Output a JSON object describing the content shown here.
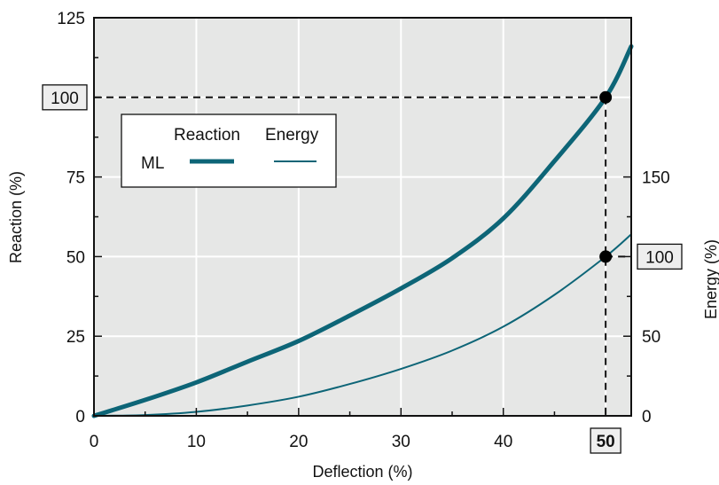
{
  "chart_data": {
    "type": "line",
    "xlabel": "Deflection (%)",
    "ylabel": "Reaction (%)",
    "y2label": "Energy (%)",
    "xlim": [
      0,
      52.5
    ],
    "ylim": [
      0,
      125
    ],
    "y2lim": [
      0,
      250
    ],
    "x_ticks": [
      0,
      10,
      20,
      30,
      40,
      50
    ],
    "y_ticks": [
      0,
      25,
      50,
      75,
      100,
      125
    ],
    "y2_ticks": [
      0,
      50,
      100,
      150
    ],
    "grid": true,
    "legend": {
      "placement": "upper-left",
      "row_label": "ML",
      "column_labels": [
        "Reaction",
        "Energy"
      ]
    },
    "series": [
      {
        "name": "Reaction",
        "axis": "left",
        "x": [
          0,
          5,
          10,
          15,
          20,
          25,
          30,
          35,
          40,
          45,
          50,
          52.5
        ],
        "y": [
          0,
          5,
          10.5,
          17,
          23.5,
          31.5,
          40,
          49.5,
          62,
          80,
          100,
          116
        ]
      },
      {
        "name": "Energy",
        "axis": "right",
        "x": [
          0,
          5,
          10,
          15,
          20,
          25,
          30,
          35,
          40,
          45,
          50,
          52.5
        ],
        "y": [
          0,
          0.5,
          2.5,
          6.5,
          12,
          20,
          29.5,
          41,
          56,
          76,
          100,
          114
        ]
      }
    ],
    "annotations": {
      "x_marker": 50,
      "x_marker_label": "50",
      "reaction_marker_label": "100",
      "energy_marker_label": "100"
    },
    "colors": {
      "plot_background": "#e6e7e6",
      "grid": "#ffffff",
      "series": "#0d6577",
      "frame": "#111111",
      "marker": "#000000"
    }
  }
}
